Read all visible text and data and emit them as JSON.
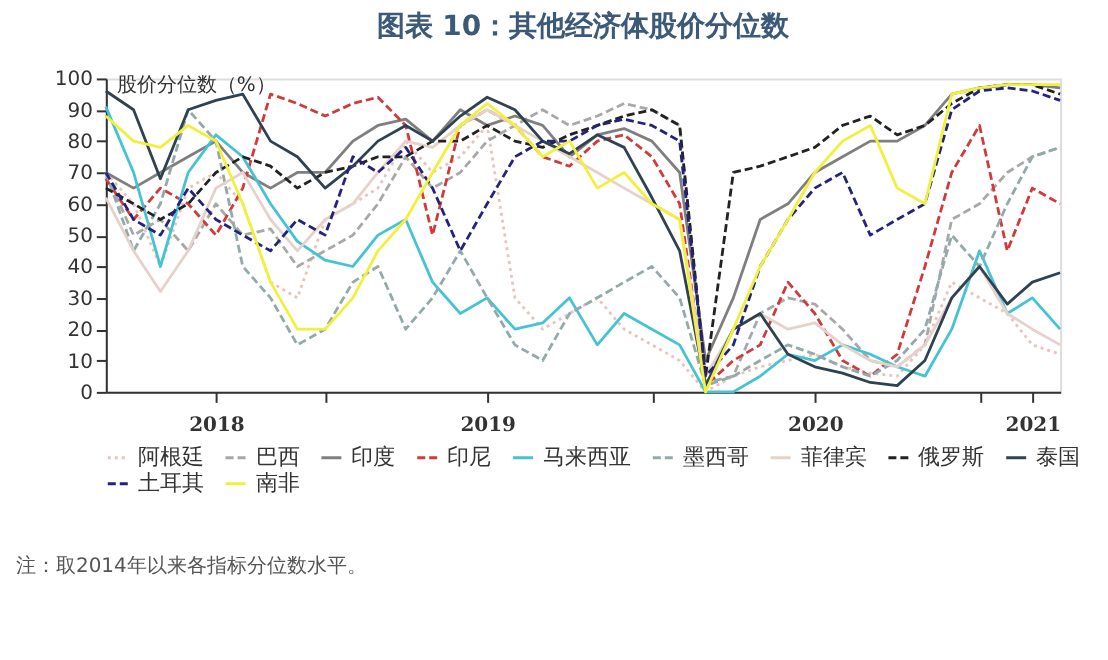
{
  "chart_data": {
    "type": "line",
    "title": "图表 10：其他经济体股价分位数",
    "ylabel": "股价分位数（%）",
    "annotations": [
      "注：取2014年以来各指标分位数水平。"
    ],
    "x": [
      "2018-05-01",
      "2018-06-01",
      "2018-07-01",
      "2018-08-01",
      "2018-09-01",
      "2018-10-01",
      "2018-11-01",
      "2018-12-01",
      "2019-01-01",
      "2019-02-01",
      "2019-03-01",
      "2019-04-01",
      "2019-05-01",
      "2019-06-01",
      "2019-07-01",
      "2019-08-01",
      "2019-09-01",
      "2019-10-01",
      "2019-11-01",
      "2019-12-01",
      "2020-01-01",
      "2020-02-01",
      "2020-03-01",
      "2020-04-01",
      "2020-05-01",
      "2020-06-01",
      "2020-07-01",
      "2020-08-01",
      "2020-09-01",
      "2020-10-01",
      "2020-11-01",
      "2020-12-01",
      "2021-01-01",
      "2021-02-01",
      "2021-03-01",
      "2021-04-01"
    ],
    "xlim": [
      "2018-05-01",
      "2021-04-01"
    ],
    "xticks": [
      {
        "value": "2018-09-01",
        "label": "2018"
      },
      {
        "value": "2019-01-01",
        "label": null
      },
      {
        "value": "2019-07-01",
        "label": "2019"
      },
      {
        "value": "2020-01-01",
        "label": null
      },
      {
        "value": "2020-07-01",
        "label": "2020"
      },
      {
        "value": "2021-01-01",
        "label": null
      },
      {
        "value": "2021-03-01",
        "label": "2021"
      }
    ],
    "ylim": [
      0,
      100
    ],
    "yticks": [
      0,
      10,
      20,
      30,
      40,
      50,
      60,
      70,
      80,
      90,
      100
    ],
    "grid": false,
    "legend": "bottom",
    "marker": "none",
    "series": [
      {
        "name": "阿根廷",
        "color": "#e8c4bc",
        "line_style": "dotted",
        "values": [
          70,
          60,
          40,
          65,
          70,
          60,
          35,
          30,
          55,
          60,
          65,
          80,
          70,
          75,
          85,
          30,
          20,
          25,
          30,
          20,
          15,
          10,
          0,
          5,
          8,
          10,
          12,
          8,
          6,
          5,
          15,
          35,
          30,
          25,
          15,
          12
        ]
      },
      {
        "name": "巴西",
        "color": "#a8a8a8",
        "line_style": "dashed",
        "values": [
          70,
          50,
          55,
          45,
          60,
          50,
          52,
          40,
          45,
          50,
          60,
          75,
          65,
          70,
          80,
          85,
          90,
          85,
          88,
          92,
          90,
          85,
          3,
          5,
          25,
          30,
          28,
          20,
          10,
          8,
          15,
          55,
          60,
          70,
          75,
          78
        ]
      },
      {
        "name": "印度",
        "color": "#7f7f7f",
        "line_style": "solid",
        "values": [
          70,
          65,
          70,
          75,
          80,
          70,
          65,
          70,
          70,
          80,
          85,
          87,
          80,
          90,
          85,
          88,
          85,
          75,
          82,
          84,
          80,
          70,
          10,
          30,
          55,
          60,
          70,
          75,
          80,
          80,
          85,
          95,
          97,
          98,
          98,
          97
        ]
      },
      {
        "name": "印尼",
        "color": "#d03a3a",
        "line_style": "dashed",
        "values": [
          68,
          55,
          65,
          60,
          50,
          65,
          95,
          92,
          88,
          92,
          94,
          85,
          50,
          85,
          90,
          85,
          75,
          72,
          80,
          82,
          75,
          60,
          2,
          10,
          15,
          35,
          25,
          10,
          5,
          12,
          40,
          70,
          85,
          45,
          65,
          60
        ]
      },
      {
        "name": "马来西亚",
        "color": "#45c3d3",
        "line_style": "solid",
        "values": [
          91,
          70,
          40,
          70,
          82,
          75,
          60,
          48,
          42,
          40,
          50,
          55,
          35,
          25,
          30,
          20,
          22,
          30,
          15,
          25,
          20,
          15,
          0,
          0,
          5,
          12,
          10,
          15,
          12,
          8,
          5,
          20,
          45,
          25,
          30,
          20
        ]
      },
      {
        "name": "墨西哥",
        "color": "#92aaaa",
        "line_style": "dashed",
        "values": [
          70,
          45,
          60,
          90,
          80,
          40,
          30,
          15,
          20,
          35,
          40,
          20,
          30,
          45,
          30,
          15,
          10,
          25,
          30,
          35,
          40,
          30,
          2,
          5,
          10,
          15,
          12,
          8,
          5,
          10,
          20,
          50,
          40,
          60,
          75,
          78
        ]
      },
      {
        "name": "菲律宾",
        "color": "#e6d2ca",
        "line_style": "solid",
        "values": [
          62,
          45,
          32,
          45,
          65,
          70,
          55,
          45,
          55,
          60,
          70,
          80,
          78,
          85,
          90,
          85,
          80,
          75,
          70,
          65,
          60,
          55,
          5,
          20,
          25,
          20,
          22,
          15,
          10,
          8,
          15,
          30,
          40,
          25,
          20,
          15
        ]
      },
      {
        "name": "俄罗斯",
        "color": "#222222",
        "line_style": "dashed",
        "values": [
          65,
          60,
          55,
          60,
          70,
          75,
          72,
          65,
          70,
          72,
          75,
          75,
          80,
          80,
          85,
          80,
          78,
          82,
          85,
          88,
          90,
          85,
          5,
          70,
          72,
          75,
          78,
          85,
          88,
          82,
          85,
          92,
          97,
          98,
          98,
          95
        ]
      },
      {
        "name": "泰国",
        "color": "#2f4252",
        "line_style": "solid",
        "values": [
          96,
          90,
          68,
          90,
          93,
          95,
          80,
          75,
          65,
          72,
          80,
          85,
          80,
          88,
          94,
          90,
          80,
          76,
          82,
          78,
          62,
          45,
          2,
          20,
          25,
          12,
          8,
          6,
          3,
          2,
          10,
          30,
          40,
          28,
          35,
          38
        ]
      },
      {
        "name": "土耳其",
        "color": "#23237e",
        "line_style": "dashed",
        "values": [
          70,
          55,
          50,
          65,
          55,
          50,
          45,
          55,
          50,
          75,
          70,
          78,
          65,
          45,
          60,
          75,
          80,
          80,
          85,
          87,
          85,
          80,
          5,
          15,
          40,
          55,
          65,
          70,
          50,
          55,
          60,
          90,
          96,
          97,
          96,
          93
        ]
      },
      {
        "name": "南非",
        "color": "#f2f03c",
        "line_style": "solid",
        "values": [
          88,
          80,
          78,
          85,
          80,
          60,
          35,
          20,
          20,
          30,
          45,
          55,
          70,
          85,
          92,
          85,
          75,
          80,
          65,
          70,
          60,
          55,
          0,
          20,
          40,
          55,
          70,
          80,
          85,
          65,
          60,
          95,
          97,
          98,
          98,
          98
        ]
      }
    ]
  }
}
